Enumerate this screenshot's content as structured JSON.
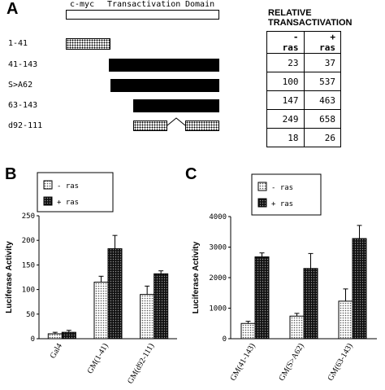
{
  "panelA": {
    "letter": "A",
    "domain_header": {
      "cmyc": "c-myc",
      "trans": "Transactivation",
      "domain": "Domain"
    },
    "constructs": [
      {
        "label": "1-41"
      },
      {
        "label": "41-143"
      },
      {
        "label": "S>A62"
      },
      {
        "label": "63-143"
      },
      {
        "label": "d92-111"
      }
    ],
    "table": {
      "title_line1": "RELATIVE",
      "title_line2": "TRANSACTIVATION",
      "col_minus": "- ras",
      "col_plus": "+ ras",
      "rows": [
        {
          "minus": "23",
          "plus": "37"
        },
        {
          "minus": "100",
          "plus": "537"
        },
        {
          "minus": "147",
          "plus": "463"
        },
        {
          "minus": "249",
          "plus": "658"
        },
        {
          "minus": "18",
          "plus": "26"
        }
      ]
    }
  },
  "chart_data": [
    {
      "panel": "B",
      "type": "bar",
      "ylabel": "Luciferase Activity",
      "ylim": [
        0,
        250
      ],
      "yticks": [
        "0",
        "50",
        "100",
        "150",
        "200",
        "250"
      ],
      "categories": [
        "Gal4",
        "GM(1-41)",
        "GM(d92-111)"
      ],
      "legend": {
        "minus": "- ras",
        "plus": "+ ras",
        "position": "top-left"
      },
      "series": [
        {
          "name": "- ras",
          "values": [
            10,
            115,
            90
          ],
          "errors": [
            3,
            12,
            17
          ],
          "color": "#bdbdbd"
        },
        {
          "name": "+ ras",
          "values": [
            13,
            183,
            132
          ],
          "errors": [
            4,
            27,
            6
          ],
          "color": "#555555"
        }
      ]
    },
    {
      "panel": "C",
      "type": "bar",
      "ylabel": "Luciferase Activity",
      "ylim": [
        0,
        4000
      ],
      "yticks": [
        "0",
        "1000",
        "2000",
        "3000",
        "4000"
      ],
      "categories": [
        "GM(41-143)",
        "GM(S>A62)",
        "GM(63-143)"
      ],
      "legend": {
        "minus": "- ras",
        "plus": "+ ras",
        "position": "top-left"
      },
      "series": [
        {
          "name": "- ras",
          "values": [
            500,
            740,
            1230
          ],
          "errors": [
            70,
            90,
            400
          ],
          "color": "#bdbdbd"
        },
        {
          "name": "+ ras",
          "values": [
            2680,
            2300,
            3280
          ],
          "errors": [
            130,
            490,
            430
          ],
          "color": "#222222"
        }
      ]
    }
  ]
}
